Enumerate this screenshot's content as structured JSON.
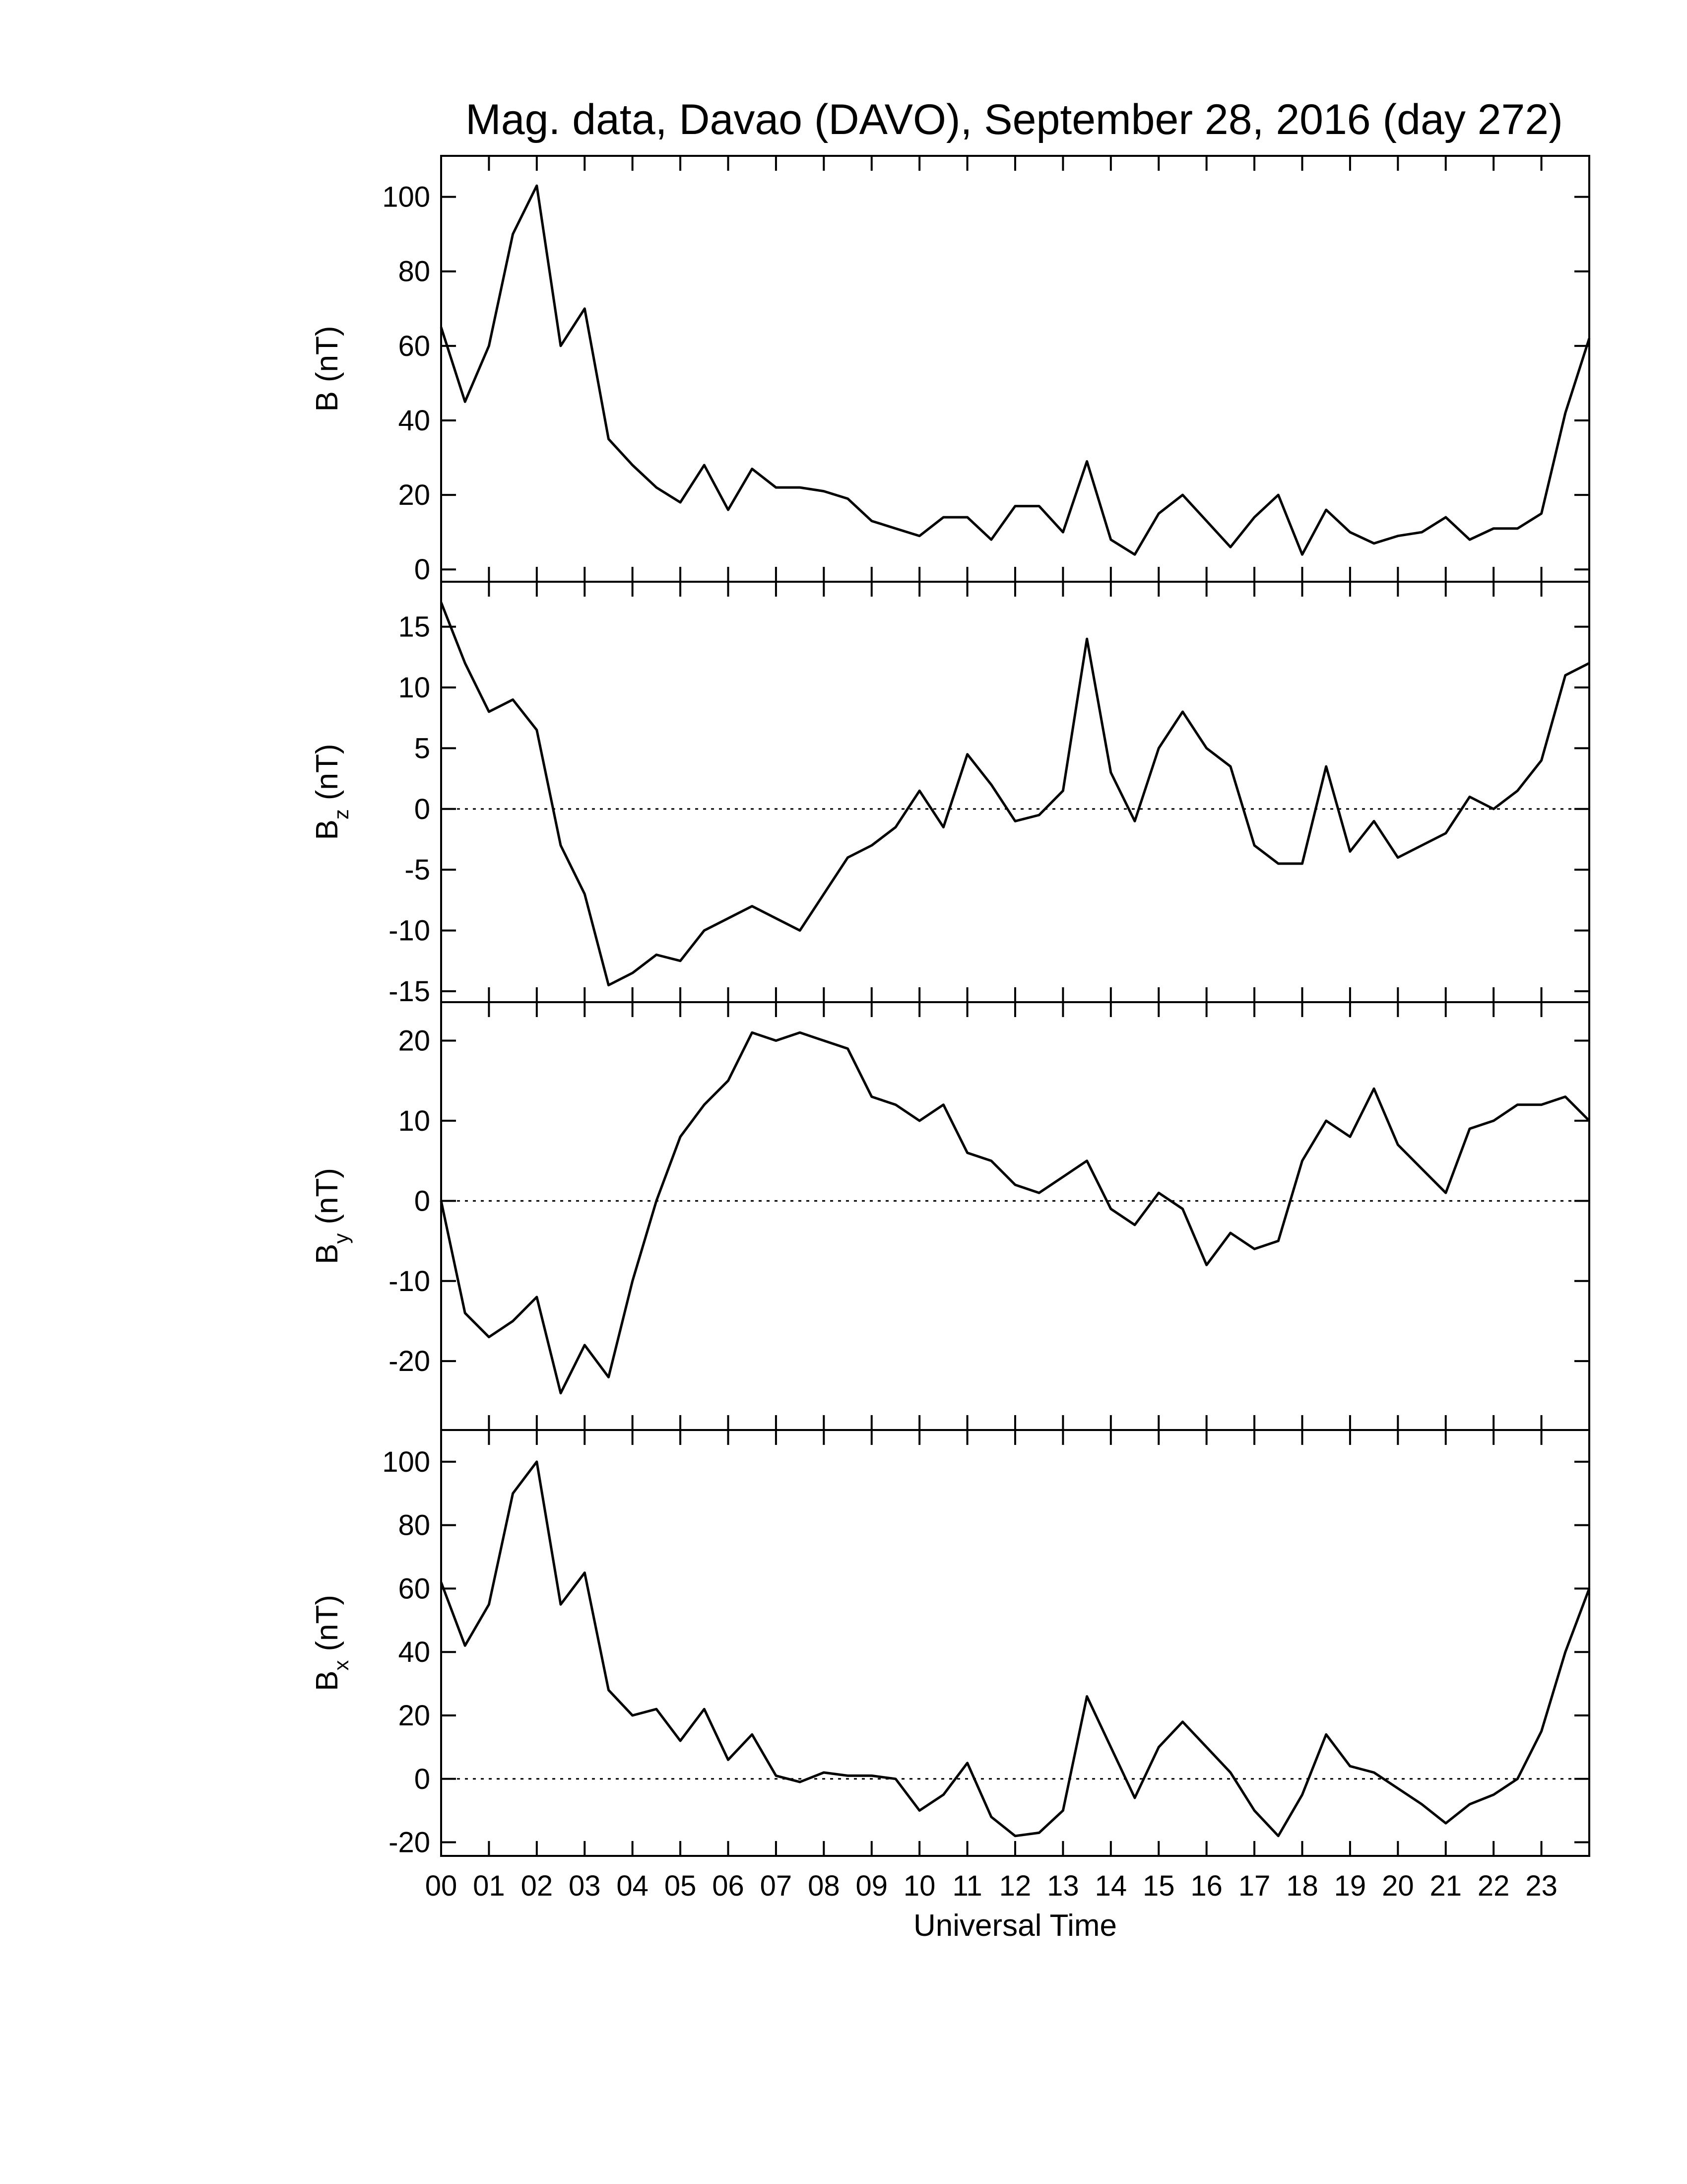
{
  "title": "Mag. data, Davao (DAVO), September 28, 2016 (day 272)",
  "xlabel": "Universal Time",
  "chart_data": [
    {
      "type": "line",
      "ylabel": {
        "main": "B",
        "unit": "(nT)"
      },
      "color": "#000000",
      "zero_line": false,
      "x": [
        0,
        0.5,
        1,
        1.5,
        2,
        2.5,
        3,
        3.5,
        4,
        4.5,
        5,
        5.5,
        6,
        6.5,
        7,
        7.5,
        8,
        8.5,
        9,
        9.5,
        10,
        10.5,
        11,
        11.5,
        12,
        12.5,
        13,
        13.5,
        14,
        14.5,
        15,
        15.5,
        16,
        16.5,
        17,
        17.5,
        18,
        18.5,
        19,
        19.5,
        20,
        20.5,
        21,
        21.5,
        22,
        22.5,
        23,
        23.5,
        24
      ],
      "values": [
        65,
        45,
        60,
        90,
        103,
        60,
        70,
        35,
        28,
        22,
        18,
        28,
        16,
        27,
        22,
        22,
        21,
        19,
        13,
        11,
        9,
        14,
        14,
        8,
        17,
        17,
        10,
        29,
        8,
        4,
        15,
        20,
        13,
        6,
        14,
        20,
        4,
        16,
        10,
        7,
        9,
        10,
        14,
        8,
        11,
        11,
        15,
        42,
        62
      ],
      "xlim": [
        0,
        24
      ],
      "xticks": [
        0,
        1,
        2,
        3,
        4,
        5,
        6,
        7,
        8,
        9,
        10,
        11,
        12,
        13,
        14,
        15,
        16,
        17,
        18,
        19,
        20,
        21,
        22,
        23
      ],
      "ylim": [
        -3.3,
        111
      ],
      "yticks": [
        0,
        20,
        40,
        60,
        80,
        100
      ]
    },
    {
      "type": "line",
      "ylabel": {
        "main": "B",
        "sub": "z",
        "unit": "(nT)"
      },
      "color": "#000000",
      "zero_line": true,
      "x": [
        0,
        0.5,
        1,
        1.5,
        2,
        2.5,
        3,
        3.5,
        4,
        4.5,
        5,
        5.5,
        6,
        6.5,
        7,
        7.5,
        8,
        8.5,
        9,
        9.5,
        10,
        10.5,
        11,
        11.5,
        12,
        12.5,
        13,
        13.5,
        14,
        14.5,
        15,
        15.5,
        16,
        16.5,
        17,
        17.5,
        18,
        18.5,
        19,
        19.5,
        20,
        20.5,
        21,
        21.5,
        22,
        22.5,
        23,
        23.5,
        24
      ],
      "values": [
        17,
        12,
        8,
        9,
        6.5,
        -3,
        -7,
        -14.5,
        -13.5,
        -12,
        -12.5,
        -10,
        -9,
        -8,
        -9,
        -10,
        -7,
        -4,
        -3,
        -1.5,
        1.5,
        -1.5,
        4.5,
        2,
        -1,
        -0.5,
        1.5,
        14,
        3,
        -1,
        5,
        8,
        5,
        3.5,
        -3,
        -4.5,
        -4.5,
        3.5,
        -3.5,
        -1,
        -4,
        -3,
        -2,
        1,
        0,
        1.5,
        4,
        11,
        12
      ],
      "xlim": [
        0,
        24
      ],
      "xticks": [
        0,
        1,
        2,
        3,
        4,
        5,
        6,
        7,
        8,
        9,
        10,
        11,
        12,
        13,
        14,
        15,
        16,
        17,
        18,
        19,
        20,
        21,
        22,
        23
      ],
      "ylim": [
        -15.9,
        18.7
      ],
      "yticks": [
        -15,
        -10,
        -5,
        0,
        5,
        10,
        15
      ]
    },
    {
      "type": "line",
      "ylabel": {
        "main": "B",
        "sub": "y",
        "unit": "(nT)"
      },
      "color": "#000000",
      "zero_line": true,
      "x": [
        0,
        0.5,
        1,
        1.5,
        2,
        2.5,
        3,
        3.5,
        4,
        4.5,
        5,
        5.5,
        6,
        6.5,
        7,
        7.5,
        8,
        8.5,
        9,
        9.5,
        10,
        10.5,
        11,
        11.5,
        12,
        12.5,
        13,
        13.5,
        14,
        14.5,
        15,
        15.5,
        16,
        16.5,
        17,
        17.5,
        18,
        18.5,
        19,
        19.5,
        20,
        20.5,
        21,
        21.5,
        22,
        22.5,
        23,
        23.5,
        24
      ],
      "values": [
        0,
        -14,
        -17,
        -15,
        -12,
        -24,
        -18,
        -22,
        -10,
        0,
        8,
        12,
        15,
        21,
        20,
        21,
        20,
        19,
        13,
        12,
        10,
        12,
        6,
        5,
        2,
        1,
        3,
        5,
        -1,
        -3,
        1,
        -1,
        -8,
        -4,
        -6,
        -5,
        5,
        10,
        8,
        14,
        7,
        4,
        1,
        9,
        10,
        12,
        12,
        13,
        10
      ],
      "xlim": [
        0,
        24
      ],
      "xticks": [
        0,
        1,
        2,
        3,
        4,
        5,
        6,
        7,
        8,
        9,
        10,
        11,
        12,
        13,
        14,
        15,
        16,
        17,
        18,
        19,
        20,
        21,
        22,
        23
      ],
      "ylim": [
        -28.6,
        24.8
      ],
      "yticks": [
        -20,
        -10,
        0,
        10,
        20
      ]
    },
    {
      "type": "line",
      "ylabel": {
        "main": "B",
        "sub": "x",
        "unit": "(nT)"
      },
      "color": "#000000",
      "zero_line": true,
      "x": [
        0,
        0.5,
        1,
        1.5,
        2,
        2.5,
        3,
        3.5,
        4,
        4.5,
        5,
        5.5,
        6,
        6.5,
        7,
        7.5,
        8,
        8.5,
        9,
        9.5,
        10,
        10.5,
        11,
        11.5,
        12,
        12.5,
        13,
        13.5,
        14,
        14.5,
        15,
        15.5,
        16,
        16.5,
        17,
        17.5,
        18,
        18.5,
        19,
        19.5,
        20,
        20.5,
        21,
        21.5,
        22,
        22.5,
        23,
        23.5,
        24
      ],
      "values": [
        62,
        42,
        55,
        90,
        100,
        55,
        65,
        28,
        20,
        22,
        12,
        22,
        6,
        14,
        1,
        -1,
        2,
        1,
        1,
        0,
        -10,
        -5,
        5,
        -12,
        -18,
        -17,
        -10,
        26,
        10,
        -6,
        10,
        18,
        10,
        2,
        -10,
        -18,
        -5,
        14,
        4,
        2,
        -3,
        -8,
        -14,
        -8,
        -5,
        0,
        15,
        40,
        60
      ],
      "xlim": [
        0,
        24
      ],
      "xticks": [
        {
          "value": 0,
          "label": "00"
        },
        {
          "value": 1,
          "label": "01"
        },
        {
          "value": 2,
          "label": "02"
        },
        {
          "value": 3,
          "label": "03"
        },
        {
          "value": 4,
          "label": "04"
        },
        {
          "value": 5,
          "label": "05"
        },
        {
          "value": 6,
          "label": "06"
        },
        {
          "value": 7,
          "label": "07"
        },
        {
          "value": 8,
          "label": "08"
        },
        {
          "value": 9,
          "label": "09"
        },
        10,
        11,
        12,
        13,
        14,
        15,
        16,
        17,
        18,
        19,
        20,
        21,
        22,
        23
      ],
      "ylim": [
        -24.3,
        110
      ],
      "yticks": [
        -20,
        0,
        20,
        40,
        60,
        80,
        100
      ]
    }
  ]
}
